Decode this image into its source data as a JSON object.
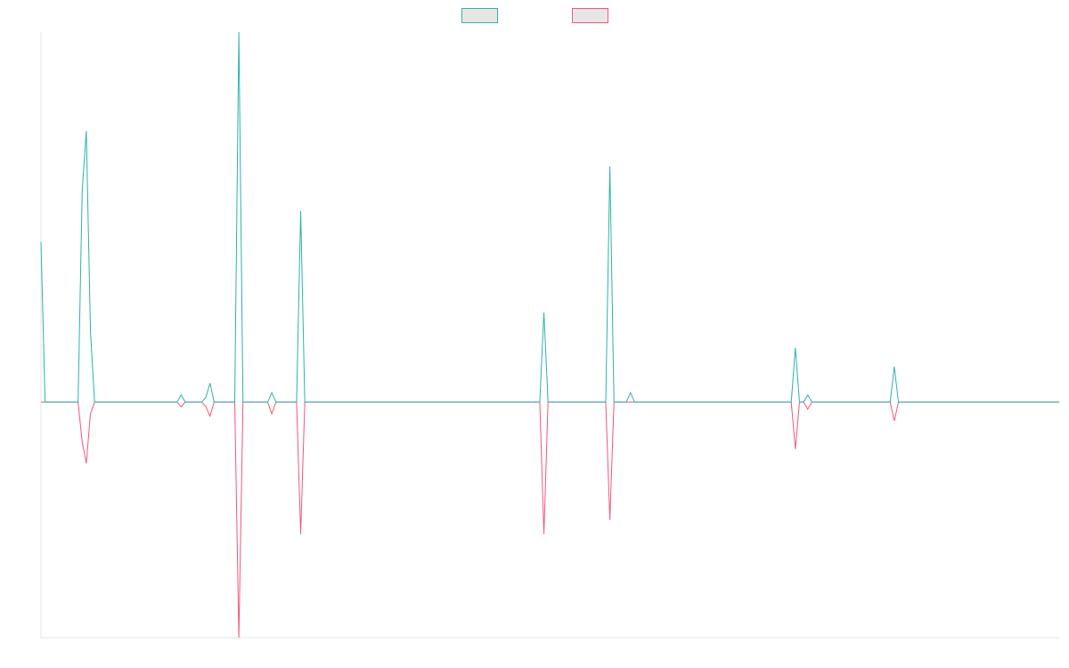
{
  "chart_data": {
    "type": "line",
    "title": "",
    "xlabel": "",
    "ylabel": "",
    "grid": false,
    "legend_position": "top-center",
    "ylim": [
      -100,
      157
    ],
    "series": [
      {
        "color": "#2bb3a9",
        "fill_color": "#e6e6e6",
        "points": [
          [
            0,
            68
          ],
          [
            1,
            0
          ],
          [
            9,
            0
          ],
          [
            10,
            90
          ],
          [
            11,
            115
          ],
          [
            12,
            30
          ],
          [
            13,
            0
          ],
          [
            33,
            0
          ],
          [
            34,
            3
          ],
          [
            35,
            0
          ],
          [
            39,
            0
          ],
          [
            40,
            2
          ],
          [
            41,
            8
          ],
          [
            42,
            0
          ],
          [
            47,
            0
          ],
          [
            48,
            157
          ],
          [
            49,
            0
          ],
          [
            55,
            0
          ],
          [
            56,
            4
          ],
          [
            57,
            0
          ],
          [
            62,
            0
          ],
          [
            63,
            81
          ],
          [
            64,
            0
          ],
          [
            121,
            0
          ],
          [
            122,
            38
          ],
          [
            123,
            0
          ],
          [
            137,
            0
          ],
          [
            138,
            100
          ],
          [
            139,
            0
          ],
          [
            142,
            0
          ],
          [
            143,
            4
          ],
          [
            144,
            0
          ],
          [
            182,
            0
          ],
          [
            183,
            23
          ],
          [
            184,
            0
          ],
          [
            185,
            0
          ],
          [
            186,
            3
          ],
          [
            187,
            0
          ],
          [
            206,
            0
          ],
          [
            207,
            15
          ],
          [
            208,
            0
          ],
          [
            247,
            0
          ]
        ]
      },
      {
        "color": "#f2577b",
        "fill_color": "#e6e6e6",
        "points": [
          [
            0,
            0
          ],
          [
            9,
            0
          ],
          [
            10,
            -17
          ],
          [
            11,
            -26
          ],
          [
            12,
            -5
          ],
          [
            13,
            0
          ],
          [
            33,
            0
          ],
          [
            34,
            -2
          ],
          [
            35,
            0
          ],
          [
            39,
            0
          ],
          [
            40,
            -2
          ],
          [
            41,
            -6
          ],
          [
            42,
            0
          ],
          [
            47,
            0
          ],
          [
            48,
            -100
          ],
          [
            49,
            0
          ],
          [
            55,
            0
          ],
          [
            56,
            -5
          ],
          [
            57,
            0
          ],
          [
            62,
            0
          ],
          [
            63,
            -56
          ],
          [
            64,
            0
          ],
          [
            121,
            0
          ],
          [
            122,
            -56
          ],
          [
            123,
            0
          ],
          [
            137,
            0
          ],
          [
            138,
            -50
          ],
          [
            139,
            0
          ],
          [
            182,
            0
          ],
          [
            183,
            -20
          ],
          [
            184,
            0
          ],
          [
            185,
            0
          ],
          [
            186,
            -3
          ],
          [
            187,
            0
          ],
          [
            206,
            0
          ],
          [
            207,
            -8
          ],
          [
            208,
            0
          ],
          [
            247,
            0
          ]
        ]
      }
    ]
  }
}
